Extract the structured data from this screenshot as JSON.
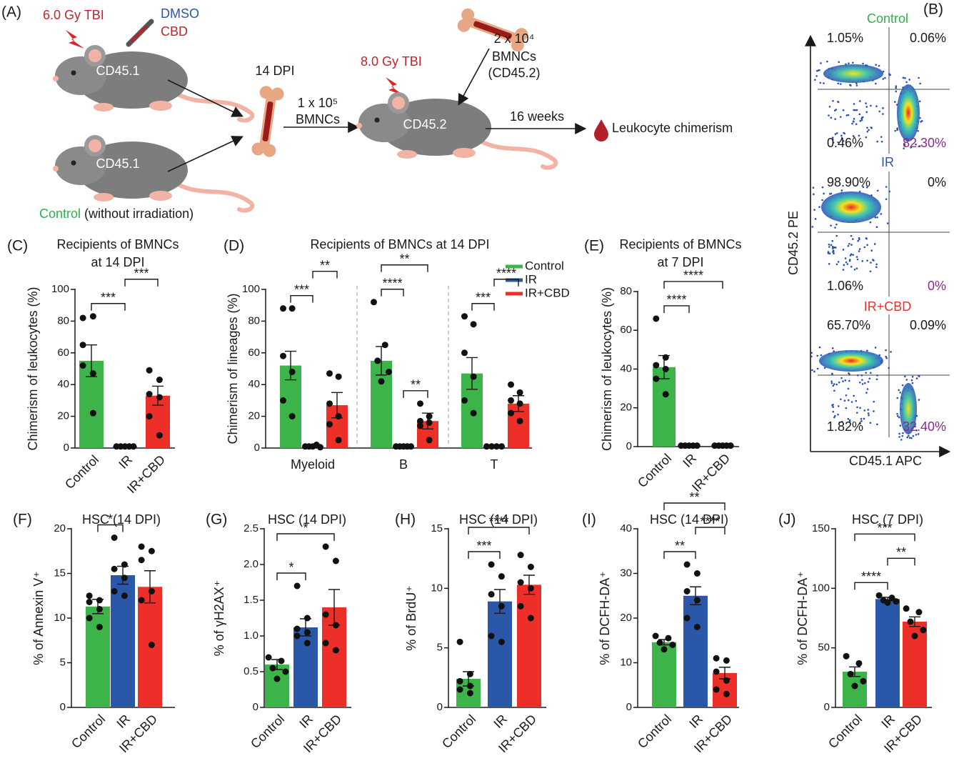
{
  "schematic": {
    "panel": "(A)",
    "dose1": "6.0 Gy TBI",
    "drug1": "DMSO",
    "drug2": "CBD",
    "mouse1": "CD45.1",
    "mouse2": "CD45.1",
    "control": "Control",
    "control_note": "(without irradiation)",
    "dpi": "14 DPI",
    "transfer_count": "1 x 10⁵",
    "transfer_cells": "BMNCs",
    "dose2": "8.0 Gy TBI",
    "recipient": "CD45.2",
    "helper_count": "2 x 10⁴",
    "helper_cells": "BMNCs",
    "helper_type": "(CD45.2)",
    "duration": "16 weeks",
    "readout": "Leukocyte chimerism"
  },
  "flow": {
    "panel": "(B)",
    "ylabel": "CD45.2 PE",
    "xlabel": "CD45.1 APC",
    "plots": [
      {
        "title": "Control",
        "color": "#2bb24c",
        "quadrants": [
          "1.05%",
          "0.06%",
          "0.46%",
          "82.30%"
        ]
      },
      {
        "title": "IR",
        "color": "#2a57a8",
        "quadrants": [
          "98.90%",
          "0%",
          "1.06%",
          "0%"
        ]
      },
      {
        "title": "IR+CBD",
        "color": "#ed2f2a",
        "quadrants": [
          "65.70%",
          "0.09%",
          "1.82%",
          "32.40%"
        ]
      }
    ]
  },
  "chart_data": [
    {
      "type": "bar",
      "panel": "(C)",
      "title": [
        "Recipients of BMNCs",
        "at 14 DPI"
      ],
      "ylabel": "Chimerism of leukocytes (%)",
      "categories": [
        "Control",
        "IR",
        "IR+CBD"
      ],
      "colors": [
        "#3cb44a",
        "#2a57a8",
        "#ed2f2a"
      ],
      "values": [
        55,
        1,
        33
      ],
      "errors": [
        10,
        0.3,
        6
      ],
      "points": [
        [
          82,
          83,
          65,
          47,
          52,
          22
        ],
        [
          1,
          1,
          1,
          1,
          1
        ],
        [
          49,
          43,
          34,
          32,
          20,
          8
        ]
      ],
      "ylim": [
        0,
        100
      ],
      "yticks": [
        0,
        20,
        40,
        60,
        80,
        100
      ],
      "annotations": [
        {
          "between": [
            "Control",
            "IR"
          ],
          "label": "***"
        },
        {
          "between": [
            "IR",
            "IR+CBD"
          ],
          "label": "***"
        }
      ]
    },
    {
      "type": "grouped_bar",
      "panel": "(D)",
      "title": "Recipients of BMNCs at 14 DPI",
      "ylabel": "Chimerism of lineages (%)",
      "categories": [
        "Myeloid",
        "B",
        "T"
      ],
      "series": [
        {
          "name": "Control",
          "color": "#3cb44a",
          "values": [
            52,
            55,
            47
          ],
          "errors": [
            9,
            9,
            10
          ],
          "points": [
            [
              88,
              88,
              58,
              48,
              30,
              20
            ],
            [
              92,
              65,
              55,
              48,
              42
            ],
            [
              83,
              78,
              60,
              45,
              30,
              22
            ]
          ]
        },
        {
          "name": "IR",
          "color": "#2a57a8",
          "values": [
            1,
            1,
            1
          ],
          "errors": [
            0.5,
            0.3,
            0.3
          ],
          "points": [
            [
              1,
              2,
              1,
              0.5,
              1
            ],
            [
              1,
              1,
              1,
              1,
              1
            ],
            [
              1,
              1,
              1,
              1
            ]
          ]
        },
        {
          "name": "IR+CBD",
          "color": "#ed2f2a",
          "values": [
            27,
            17,
            28
          ],
          "errors": [
            8,
            5,
            5
          ],
          "points": [
            [
              47,
              45,
              28,
              20,
              15,
              5
            ],
            [
              28,
              20,
              17,
              16,
              14,
              5
            ],
            [
              40,
              35,
              30,
              28,
              22,
              17
            ]
          ]
        }
      ],
      "ylim": [
        0,
        100
      ],
      "yticks": [
        0,
        20,
        40,
        60,
        80,
        100
      ],
      "legend": "upper right",
      "annotations": [
        {
          "category": "Myeloid",
          "between": [
            "Control",
            "IR"
          ],
          "label": "***"
        },
        {
          "category": "Myeloid",
          "between": [
            "IR",
            "IR+CBD"
          ],
          "label": "**"
        },
        {
          "category": "B",
          "between": [
            "IR",
            "IR+CBD"
          ],
          "label": "**"
        },
        {
          "category": "B",
          "between": [
            "Control",
            "IR"
          ],
          "label": "****"
        },
        {
          "category": "B",
          "between": [
            "Control",
            "IR+CBD"
          ],
          "label": "**"
        },
        {
          "category": "T",
          "between": [
            "Control",
            "IR"
          ],
          "label": "***"
        },
        {
          "category": "T",
          "between": [
            "IR",
            "IR+CBD"
          ],
          "label": "****"
        }
      ]
    },
    {
      "type": "bar",
      "panel": "(E)",
      "title": [
        "Recipients of BMNCs",
        "at 7 DPI"
      ],
      "ylabel": "Chimerism of leukocytes (%)",
      "categories": [
        "Control",
        "IR",
        "IR+CBD"
      ],
      "colors": [
        "#3cb44a",
        "#2a57a8",
        "#ed2f2a"
      ],
      "values": [
        41,
        0.5,
        0.5
      ],
      "errors": [
        6,
        0.2,
        0.2
      ],
      "points": [
        [
          66,
          46,
          42,
          40,
          35,
          27
        ],
        [
          0.5,
          0.5,
          0.5,
          0.5,
          0.5
        ],
        [
          0.5,
          0.5,
          0.5,
          0.5,
          0.5
        ]
      ],
      "ylim": [
        0,
        80
      ],
      "yticks": [
        0,
        20,
        40,
        60,
        80
      ],
      "annotations": [
        {
          "between": [
            "Control",
            "IR"
          ],
          "label": "****"
        },
        {
          "between": [
            "Control",
            "IR+CBD"
          ],
          "label": "****"
        }
      ]
    },
    {
      "type": "bar",
      "panel": "(F)",
      "title": "HSC (14 DPI)",
      "ylabel": "% of Annexin V⁺",
      "categories": [
        "Control",
        "IR",
        "IR+CBD"
      ],
      "colors": [
        "#3cb44a",
        "#2a57a8",
        "#ed2f2a"
      ],
      "values": [
        11.3,
        14.8,
        13.5
      ],
      "errors": [
        0.8,
        1.0,
        1.8
      ],
      "points": [
        [
          12.5,
          12,
          11.8,
          11,
          10,
          9
        ],
        [
          19,
          16,
          15.5,
          14.5,
          13,
          12.5
        ],
        [
          18,
          17.5,
          16.5,
          13,
          12,
          7
        ]
      ],
      "ylim": [
        0,
        20
      ],
      "yticks": [
        0,
        5,
        10,
        15,
        20
      ],
      "annotations": [
        {
          "between": [
            "Control",
            "IR"
          ],
          "label": "*"
        }
      ]
    },
    {
      "type": "bar",
      "panel": "(G)",
      "title": "HSC (14 DPI)",
      "ylabel": "% of γH2AX⁺",
      "categories": [
        "Control",
        "IR",
        "IR+CBD"
      ],
      "colors": [
        "#3cb44a",
        "#2a57a8",
        "#ed2f2a"
      ],
      "values": [
        0.6,
        1.12,
        1.4
      ],
      "errors": [
        0.07,
        0.12,
        0.25
      ],
      "points": [
        [
          0.7,
          0.65,
          0.55,
          0.5,
          0.4
        ],
        [
          1.7,
          1.25,
          1.1,
          1.05,
          1.0,
          0.9
        ],
        [
          2.25,
          2.05,
          1.3,
          1.15,
          0.9,
          0.8
        ]
      ],
      "ylim": [
        0,
        2.5
      ],
      "yticks": [
        0,
        0.5,
        {
          "value": 1,
          "label": "1.0"
        },
        1.5,
        {
          "value": 2,
          "label": "2.0"
        },
        2.5
      ],
      "annotations": [
        {
          "between": [
            "Control",
            "IR"
          ],
          "label": "*"
        },
        {
          "between": [
            "Control",
            "IR+CBD"
          ],
          "label": "*"
        }
      ]
    },
    {
      "type": "bar",
      "panel": "(H)",
      "title": "HSC (14 DPI)",
      "ylabel": "% of BrdU⁺",
      "categories": [
        "Control",
        "IR",
        "IR+CBD"
      ],
      "colors": [
        "#3cb44a",
        "#2a57a8",
        "#ed2f2a"
      ],
      "values": [
        2.4,
        8.9,
        10.3
      ],
      "errors": [
        0.6,
        1.0,
        0.8
      ],
      "points": [
        [
          5.5,
          2.8,
          2.2,
          1.8,
          1.5,
          1.2
        ],
        [
          12,
          11,
          9.5,
          8.5,
          6,
          5.5
        ],
        [
          12.8,
          11.8,
          10.5,
          10,
          8.5,
          7.5
        ]
      ],
      "ylim": [
        0,
        15
      ],
      "yticks": [
        0,
        5,
        10,
        15
      ],
      "annotations": [
        {
          "between": [
            "Control",
            "IR"
          ],
          "label": "***"
        },
        {
          "between": [
            "Control",
            "IR+CBD"
          ],
          "label": "****"
        }
      ]
    },
    {
      "type": "bar",
      "panel": "(I)",
      "title": "HSC (14 DPI)",
      "ylabel": "% of DCFH-DA⁺",
      "categories": [
        "Control",
        "IR",
        "IR+CBD"
      ],
      "colors": [
        "#3cb44a",
        "#2a57a8",
        "#ed2f2a"
      ],
      "values": [
        14.6,
        25,
        7.7
      ],
      "errors": [
        0.6,
        2,
        1.3
      ],
      "points": [
        [
          16,
          15.5,
          14.5,
          14,
          13
        ],
        [
          32,
          30,
          26,
          24,
          20,
          18
        ],
        [
          11,
          10.5,
          8,
          6,
          4,
          3
        ]
      ],
      "ylim": [
        0,
        40
      ],
      "yticks": [
        0,
        10,
        20,
        30,
        40
      ],
      "annotations": [
        {
          "between": [
            "Control",
            "IR"
          ],
          "label": "**"
        },
        {
          "between": [
            "IR",
            "IR+CBD"
          ],
          "label": "****"
        },
        {
          "between": [
            "Control",
            "IR+CBD"
          ],
          "label": "**"
        }
      ]
    },
    {
      "type": "bar",
      "panel": "(J)",
      "title": "HSC (7 DPI)",
      "ylabel": "% of DCFH-DA⁺",
      "categories": [
        "Control",
        "IR",
        "IR+CBD"
      ],
      "colors": [
        "#3cb44a",
        "#2a57a8",
        "#ed2f2a"
      ],
      "values": [
        30,
        91,
        72
      ],
      "errors": [
        4,
        1.5,
        4
      ],
      "points": [
        [
          43,
          37,
          28,
          22,
          18
        ],
        [
          94,
          92,
          90,
          89,
          88
        ],
        [
          83,
          80,
          72,
          65,
          60
        ]
      ],
      "ylim": [
        0,
        150
      ],
      "yticks": [
        0,
        50,
        100,
        150
      ],
      "annotations": [
        {
          "between": [
            "Control",
            "IR"
          ],
          "label": "****"
        },
        {
          "between": [
            "IR",
            "IR+CBD"
          ],
          "label": "**"
        },
        {
          "between": [
            "Control",
            "IR+CBD"
          ],
          "label": "***"
        }
      ]
    }
  ]
}
